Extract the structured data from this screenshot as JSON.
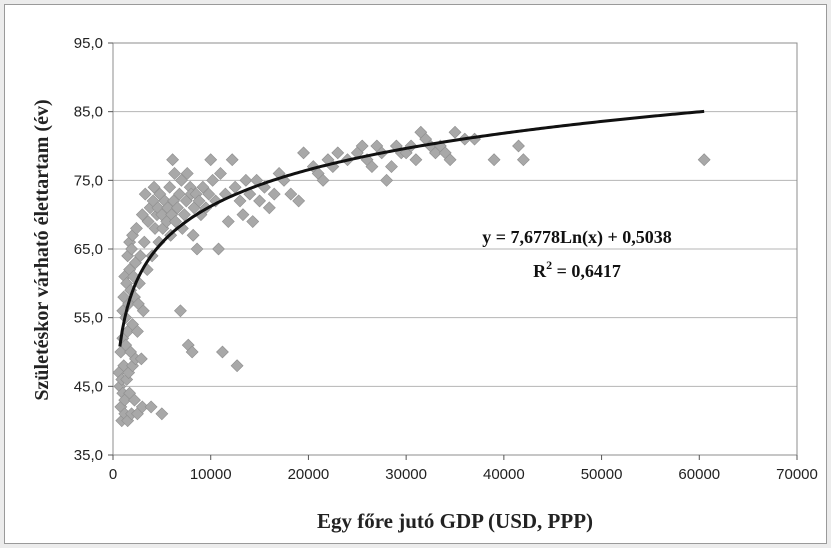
{
  "chart_data": {
    "type": "scatter",
    "xlabel": "Egy főre jutó GDP (USD, PPP)",
    "ylabel": "Születéskor várható élettartam (év)",
    "xlim": [
      0,
      70000
    ],
    "ylim": [
      35,
      95
    ],
    "x_ticks": [
      "0",
      "10000",
      "20000",
      "30000",
      "40000",
      "50000",
      "60000",
      "70000"
    ],
    "y_ticks": [
      "35,0",
      "45,0",
      "55,0",
      "65,0",
      "75,0",
      "85,0",
      "95,0"
    ],
    "grid": "horizontal",
    "marker_color": "#a8a8a8",
    "line_color": "#111111",
    "trendline": {
      "type": "logarithmic",
      "slope": 7.6778,
      "intercept": 0.5038,
      "x_range": [
        700,
        60500
      ],
      "equation_label": "y = 7,6778Ln(x) + 0,5038",
      "r2_prefix": "R",
      "r2_exponent": "2",
      "r2_value": " = 0,6417"
    },
    "points": [
      [
        600,
        47
      ],
      [
        700,
        45
      ],
      [
        800,
        42
      ],
      [
        800,
        50
      ],
      [
        900,
        46
      ],
      [
        900,
        40
      ],
      [
        1000,
        44
      ],
      [
        1000,
        52
      ],
      [
        1000,
        56
      ],
      [
        1100,
        48
      ],
      [
        1100,
        58
      ],
      [
        1200,
        41
      ],
      [
        1200,
        61
      ],
      [
        1200,
        43
      ],
      [
        1300,
        51
      ],
      [
        1300,
        55
      ],
      [
        1400,
        46
      ],
      [
        1400,
        60
      ],
      [
        1500,
        40
      ],
      [
        1500,
        53
      ],
      [
        1500,
        64
      ],
      [
        1600,
        57
      ],
      [
        1600,
        47
      ],
      [
        1700,
        44
      ],
      [
        1700,
        62
      ],
      [
        1700,
        66
      ],
      [
        1800,
        50
      ],
      [
        1800,
        59
      ],
      [
        1900,
        41
      ],
      [
        1900,
        65
      ],
      [
        2000,
        48
      ],
      [
        2000,
        54
      ],
      [
        2000,
        67
      ],
      [
        2100,
        61
      ],
      [
        2200,
        43
      ],
      [
        2200,
        58
      ],
      [
        2300,
        49
      ],
      [
        2300,
        63
      ],
      [
        2400,
        68
      ],
      [
        2500,
        53
      ],
      [
        2500,
        41
      ],
      [
        2600,
        57
      ],
      [
        2700,
        60
      ],
      [
        2800,
        64
      ],
      [
        2900,
        49
      ],
      [
        3000,
        42
      ],
      [
        3000,
        70
      ],
      [
        3100,
        56
      ],
      [
        3200,
        66
      ],
      [
        3300,
        73
      ],
      [
        3500,
        62
      ],
      [
        3600,
        69
      ],
      [
        3800,
        71
      ],
      [
        3900,
        42
      ],
      [
        4000,
        64
      ],
      [
        4100,
        72
      ],
      [
        4200,
        74
      ],
      [
        4300,
        68
      ],
      [
        4500,
        70
      ],
      [
        4600,
        71
      ],
      [
        4700,
        66
      ],
      [
        4800,
        73
      ],
      [
        5000,
        41
      ],
      [
        5000,
        70
      ],
      [
        5100,
        68
      ],
      [
        5300,
        72
      ],
      [
        5500,
        69
      ],
      [
        5600,
        71
      ],
      [
        5800,
        74
      ],
      [
        5900,
        67
      ],
      [
        6000,
        70
      ],
      [
        6100,
        78
      ],
      [
        6200,
        72
      ],
      [
        6300,
        76
      ],
      [
        6400,
        69
      ],
      [
        6600,
        71
      ],
      [
        6800,
        73
      ],
      [
        6900,
        56
      ],
      [
        7000,
        75
      ],
      [
        7100,
        68
      ],
      [
        7300,
        70
      ],
      [
        7500,
        72
      ],
      [
        7600,
        76
      ],
      [
        7700,
        51
      ],
      [
        7900,
        74
      ],
      [
        8000,
        73
      ],
      [
        8100,
        50
      ],
      [
        8200,
        67
      ],
      [
        8300,
        71
      ],
      [
        8500,
        73
      ],
      [
        8600,
        65
      ],
      [
        8800,
        72
      ],
      [
        9000,
        70
      ],
      [
        9200,
        74
      ],
      [
        9500,
        71
      ],
      [
        9800,
        73
      ],
      [
        10000,
        78
      ],
      [
        10200,
        75
      ],
      [
        10500,
        72
      ],
      [
        10800,
        65
      ],
      [
        11000,
        76
      ],
      [
        11200,
        50
      ],
      [
        11500,
        73
      ],
      [
        11800,
        69
      ],
      [
        12200,
        78
      ],
      [
        12500,
        74
      ],
      [
        12700,
        48
      ],
      [
        13000,
        72
      ],
      [
        13300,
        70
      ],
      [
        13600,
        75
      ],
      [
        14000,
        73
      ],
      [
        14300,
        69
      ],
      [
        14700,
        75
      ],
      [
        15000,
        72
      ],
      [
        15500,
        74
      ],
      [
        16000,
        71
      ],
      [
        16500,
        73
      ],
      [
        17000,
        76
      ],
      [
        17500,
        75
      ],
      [
        18200,
        73
      ],
      [
        19000,
        72
      ],
      [
        19500,
        79
      ],
      [
        20500,
        77
      ],
      [
        21000,
        76
      ],
      [
        21500,
        75
      ],
      [
        22000,
        78
      ],
      [
        22500,
        77
      ],
      [
        23000,
        79
      ],
      [
        24000,
        78
      ],
      [
        25000,
        79
      ],
      [
        25500,
        80
      ],
      [
        26000,
        78
      ],
      [
        26500,
        77
      ],
      [
        27000,
        80
      ],
      [
        27500,
        79
      ],
      [
        28000,
        75
      ],
      [
        28500,
        77
      ],
      [
        29000,
        80
      ],
      [
        29500,
        79
      ],
      [
        30000,
        79
      ],
      [
        30500,
        80
      ],
      [
        31000,
        78
      ],
      [
        31500,
        82
      ],
      [
        32000,
        81
      ],
      [
        32500,
        80
      ],
      [
        33000,
        79
      ],
      [
        33500,
        80
      ],
      [
        34000,
        79
      ],
      [
        34500,
        78
      ],
      [
        35000,
        82
      ],
      [
        36000,
        81
      ],
      [
        37000,
        81
      ],
      [
        39000,
        78
      ],
      [
        41500,
        80
      ],
      [
        42000,
        78
      ],
      [
        60500,
        78
      ]
    ]
  }
}
